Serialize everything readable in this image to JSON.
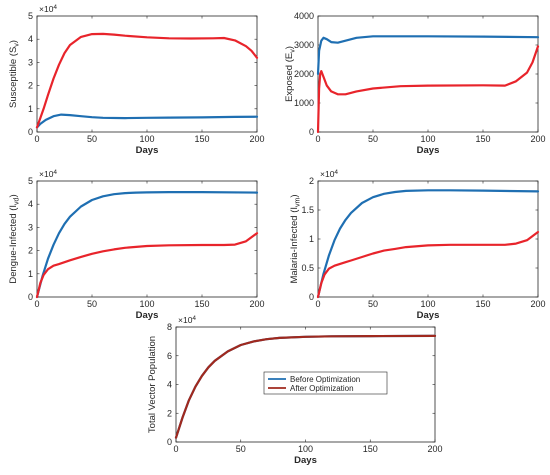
{
  "chart_data": [
    {
      "type": "line",
      "xlabel": "Days",
      "ylabel": "Susceptible (S",
      "ylabel_sub": "v",
      "ylabel_end": ")",
      "xlim": [
        0,
        200
      ],
      "ylim": [
        0,
        50000
      ],
      "xticks": [
        0,
        50,
        100,
        150,
        200
      ],
      "yticks": [
        0,
        10000,
        20000,
        30000,
        40000,
        50000
      ],
      "ytick_labels": [
        "0",
        "1",
        "2",
        "3",
        "4",
        "5"
      ],
      "multiplier": "×10",
      "multiplier_exp": "4",
      "series": [
        {
          "color": "#1f6fb2",
          "x": [
            0,
            3,
            8,
            15,
            22,
            30,
            40,
            50,
            60,
            80,
            100,
            120,
            150,
            180,
            200
          ],
          "y": [
            2000,
            3500,
            5200,
            6800,
            7500,
            7300,
            6800,
            6400,
            6100,
            6000,
            6100,
            6200,
            6300,
            6500,
            6600
          ]
        },
        {
          "color": "#e8242b",
          "x": [
            0,
            3,
            6,
            10,
            15,
            20,
            25,
            30,
            40,
            50,
            60,
            70,
            80,
            100,
            120,
            140,
            160,
            170,
            180,
            190,
            195,
            200
          ],
          "y": [
            2000,
            6000,
            10000,
            16000,
            23000,
            29000,
            34000,
            37500,
            41000,
            42200,
            42300,
            42000,
            41500,
            40800,
            40400,
            40300,
            40400,
            40500,
            39500,
            37000,
            35000,
            32000
          ]
        }
      ]
    },
    {
      "type": "line",
      "xlabel": "Days",
      "ylabel": "Exposed (E",
      "ylabel_sub": "v",
      "ylabel_end": ")",
      "xlim": [
        0,
        200
      ],
      "ylim": [
        0,
        4000
      ],
      "xticks": [
        0,
        50,
        100,
        150,
        200
      ],
      "yticks": [
        0,
        1000,
        2000,
        3000,
        4000
      ],
      "ytick_labels": [
        "0",
        "1000",
        "2000",
        "3000",
        "4000"
      ],
      "series": [
        {
          "color": "#1f6fb2",
          "x": [
            0,
            1,
            3,
            5,
            8,
            12,
            18,
            25,
            35,
            50,
            75,
            100,
            150,
            200
          ],
          "y": [
            2000,
            2800,
            3150,
            3250,
            3200,
            3100,
            3080,
            3150,
            3250,
            3300,
            3300,
            3300,
            3290,
            3270
          ]
        },
        {
          "color": "#e8242b",
          "x": [
            0,
            1,
            2,
            3,
            5,
            8,
            12,
            18,
            25,
            35,
            50,
            75,
            100,
            150,
            170,
            180,
            190,
            195,
            200
          ],
          "y": [
            0,
            1500,
            2000,
            2100,
            1900,
            1600,
            1400,
            1300,
            1300,
            1400,
            1500,
            1580,
            1600,
            1610,
            1600,
            1750,
            2050,
            2400,
            2950
          ]
        }
      ]
    },
    {
      "type": "line",
      "xlabel": "Days",
      "ylabel": "Dengue-Infected (I",
      "ylabel_sub": "vd",
      "ylabel_end": ")",
      "xlim": [
        0,
        200
      ],
      "ylim": [
        0,
        50000
      ],
      "xticks": [
        0,
        50,
        100,
        150,
        200
      ],
      "yticks": [
        0,
        10000,
        20000,
        30000,
        40000,
        50000
      ],
      "ytick_labels": [
        "0",
        "1",
        "2",
        "3",
        "4",
        "5"
      ],
      "multiplier": "×10",
      "multiplier_exp": "4",
      "series": [
        {
          "color": "#1f6fb2",
          "x": [
            0,
            5,
            10,
            15,
            20,
            25,
            30,
            40,
            50,
            60,
            70,
            80,
            90,
            100,
            120,
            150,
            200
          ],
          "y": [
            0,
            9000,
            16500,
            22500,
            27500,
            31500,
            34600,
            39000,
            41800,
            43400,
            44300,
            44800,
            45000,
            45100,
            45200,
            45200,
            45000
          ]
        },
        {
          "color": "#e8242b",
          "x": [
            0,
            3,
            6,
            10,
            15,
            20,
            25,
            30,
            40,
            50,
            60,
            70,
            80,
            100,
            120,
            150,
            170,
            180,
            190,
            200
          ],
          "y": [
            0,
            6000,
            9500,
            12000,
            13500,
            14200,
            15000,
            15800,
            17300,
            18600,
            19700,
            20500,
            21200,
            22000,
            22300,
            22400,
            22400,
            22600,
            24000,
            27500
          ]
        }
      ]
    },
    {
      "type": "line",
      "xlabel": "Days",
      "ylabel": "Malaria-Infected (I",
      "ylabel_sub": "vm",
      "ylabel_end": ")",
      "xlim": [
        0,
        200
      ],
      "ylim": [
        0,
        20000
      ],
      "xticks": [
        0,
        50,
        100,
        150,
        200
      ],
      "yticks": [
        0,
        5000,
        10000,
        15000,
        20000
      ],
      "ytick_labels": [
        "0",
        "0.5",
        "1",
        "1.5",
        "2"
      ],
      "multiplier": "×10",
      "multiplier_exp": "4",
      "series": [
        {
          "color": "#1f6fb2",
          "x": [
            0,
            5,
            10,
            15,
            20,
            25,
            30,
            40,
            50,
            60,
            70,
            80,
            100,
            120,
            150,
            200
          ],
          "y": [
            0,
            4000,
            7200,
            9800,
            11800,
            13300,
            14500,
            16200,
            17200,
            17800,
            18100,
            18300,
            18400,
            18400,
            18350,
            18200
          ]
        },
        {
          "color": "#e8242b",
          "x": [
            0,
            3,
            6,
            10,
            15,
            20,
            25,
            30,
            40,
            50,
            60,
            70,
            80,
            100,
            120,
            150,
            170,
            180,
            190,
            200
          ],
          "y": [
            0,
            2400,
            3900,
            4900,
            5400,
            5700,
            6000,
            6300,
            6900,
            7500,
            8000,
            8300,
            8600,
            8900,
            9000,
            9000,
            9000,
            9200,
            9800,
            11200
          ]
        }
      ]
    },
    {
      "type": "line",
      "xlabel": "Days",
      "ylabel": "Total Vector Population",
      "xlim": [
        0,
        200
      ],
      "ylim": [
        0,
        80000
      ],
      "xticks": [
        0,
        50,
        100,
        150,
        200
      ],
      "yticks": [
        0,
        20000,
        40000,
        60000,
        80000
      ],
      "ytick_labels": [
        "0",
        "2",
        "4",
        "6",
        "8"
      ],
      "multiplier": "×10",
      "multiplier_exp": "4",
      "legend": "center-right",
      "series": [
        {
          "name": "Before Optimization",
          "color": "#1f6fb2",
          "x": [
            0,
            5,
            10,
            15,
            20,
            25,
            30,
            40,
            50,
            60,
            70,
            80,
            100,
            120,
            150,
            200
          ],
          "y": [
            3000,
            17000,
            29000,
            38500,
            46000,
            52000,
            56500,
            63000,
            67500,
            70000,
            71500,
            72400,
            73200,
            73500,
            73700,
            73800
          ]
        },
        {
          "name": "After Optimization",
          "color": "#a0291e",
          "x": [
            0,
            5,
            10,
            15,
            20,
            25,
            30,
            40,
            50,
            60,
            70,
            80,
            100,
            120,
            150,
            200
          ],
          "y": [
            3000,
            17000,
            29000,
            38500,
            46000,
            52000,
            56500,
            63000,
            67500,
            70000,
            71500,
            72400,
            73200,
            73500,
            73700,
            73800
          ]
        }
      ]
    }
  ]
}
